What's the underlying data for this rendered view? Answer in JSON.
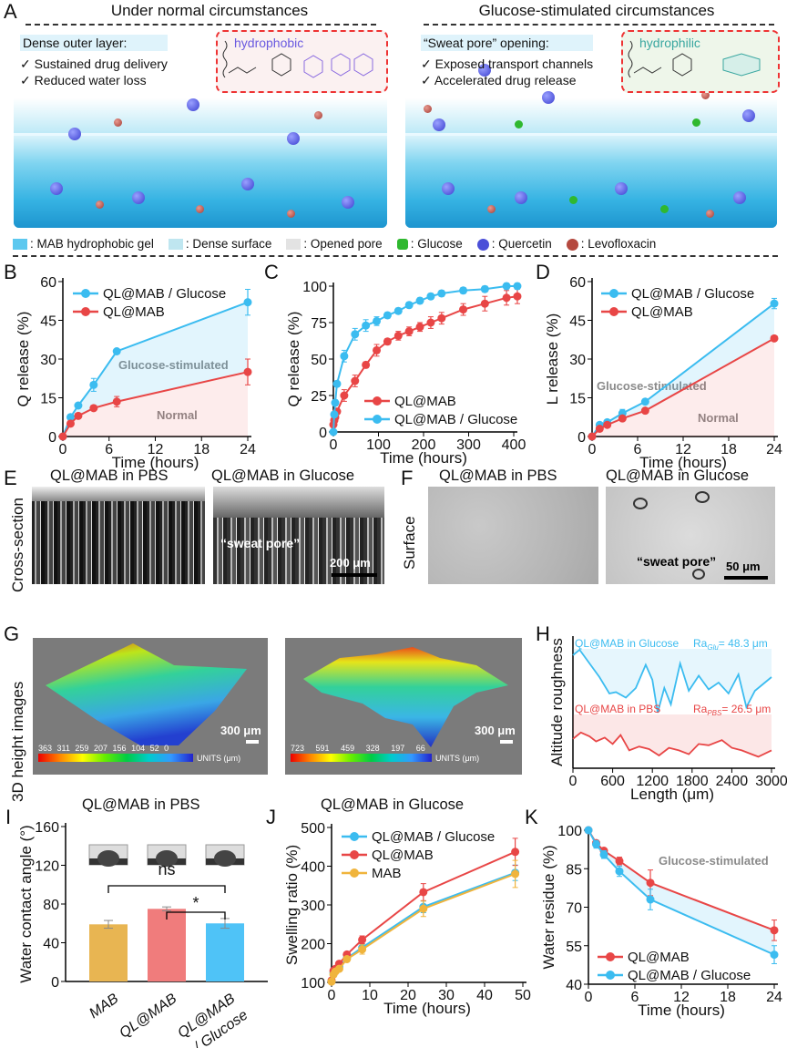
{
  "panel_letters": {
    "A": "A",
    "B": "B",
    "C": "C",
    "D": "D",
    "E": "E",
    "F": "F",
    "G": "G",
    "H": "H",
    "I": "I",
    "J": "J",
    "K": "K"
  },
  "panel_a": {
    "left_title": "Under normal circumstances",
    "right_title": "Glucose-stimulated circumstances",
    "left_note": {
      "heading": "Dense outer layer:",
      "items": [
        "✓ Sustained drug delivery",
        "✓ Reduced water loss"
      ]
    },
    "right_note": {
      "heading": "“Sweat pore” opening:",
      "items": [
        "✓ Exposed transport channels",
        "✓ Accelerated drug release"
      ]
    },
    "left_molecule_label": "hydrophobic",
    "right_molecule_label": "hydrophilic",
    "legend": [
      {
        "label": ": MAB hydrophobic gel",
        "color": "#5cc8ef"
      },
      {
        "label": ": Dense surface",
        "color": "#bfe6f0"
      },
      {
        "label": ": Opened pore",
        "color": "#d9d9d9"
      },
      {
        "label": ": Glucose",
        "color": "#2fb82f"
      },
      {
        "label": ": Quercetin",
        "color": "#4b4fd8"
      },
      {
        "label": ": Levofloxacin",
        "color": "#b5493f"
      }
    ]
  },
  "panel_e": {
    "left_title": "QL@MAB in PBS",
    "right_title": "QL@MAB in Glucose",
    "side_label": "Cross-section",
    "annotation": "“sweat pore”",
    "scale": "200 μm"
  },
  "panel_f": {
    "left_title": "QL@MAB in PBS",
    "right_title": "QL@MAB in Glucose",
    "side_label": "Surface",
    "annotation": "“sweat pore”",
    "scale": "50 μm"
  },
  "panel_g": {
    "side_label": "3D height images",
    "left_caption": "QL@MAB in PBS",
    "right_caption": "QL@MAB in Glucose",
    "scale": "300 μm",
    "units": "UNITS (μm)",
    "left_colorbar": [
      "363",
      "311",
      "259",
      "207",
      "156",
      "104",
      "52",
      "0"
    ],
    "right_colorbar": [
      "723",
      "591",
      "459",
      "328",
      "197",
      "66"
    ]
  },
  "colors": {
    "blue": "#3bbcf0",
    "red": "#e84646",
    "orange": "#f0b43c"
  },
  "chart_data": [
    {
      "id": "B",
      "type": "line",
      "xlabel": "Time (hours)",
      "ylabel": "Q release (%)",
      "xlim": [
        0,
        24
      ],
      "ylim": [
        0,
        60
      ],
      "xticks": [
        0,
        6,
        12,
        18,
        24
      ],
      "yticks": [
        0,
        15,
        30,
        45,
        60
      ],
      "legend": "top-left",
      "annotations": [
        "Glucose-stimulated",
        "Normal"
      ],
      "series": [
        {
          "name": "QL@MAB / Glucose",
          "color": "#3bbcf0",
          "x": [
            0,
            1,
            2,
            4,
            7,
            24
          ],
          "y": [
            0,
            7.5,
            12,
            20,
            33,
            52
          ],
          "err": [
            0,
            1,
            1,
            2.5,
            0.5,
            5
          ]
        },
        {
          "name": "QL@MAB",
          "color": "#e84646",
          "x": [
            0,
            1,
            2,
            4,
            7,
            24
          ],
          "y": [
            0,
            5,
            8,
            11,
            13.5,
            25
          ],
          "err": [
            0,
            1,
            1,
            1,
            2,
            5
          ]
        }
      ]
    },
    {
      "id": "C",
      "type": "line",
      "xlabel": "Time (hours)",
      "ylabel": "Q release (%)",
      "xlim": [
        0,
        400
      ],
      "ylim": [
        0,
        100
      ],
      "xticks": [
        0,
        100,
        200,
        300,
        400
      ],
      "yticks": [
        0,
        25,
        50,
        75,
        100
      ],
      "legend": "bottom-right",
      "annotations": [],
      "series": [
        {
          "name": "QL@MAB",
          "color": "#e84646",
          "x": [
            0,
            2,
            4,
            8,
            24,
            48,
            72,
            96,
            120,
            144,
            168,
            192,
            216,
            240,
            288,
            336,
            384,
            408
          ],
          "y": [
            5,
            8,
            10,
            14,
            25,
            35,
            46,
            56,
            62,
            66,
            69,
            72,
            75,
            78,
            84,
            88,
            92,
            93
          ],
          "err": [
            1,
            1,
            1,
            2,
            4,
            4,
            2,
            4,
            2,
            3,
            3,
            3,
            4,
            4,
            4,
            5,
            5,
            5
          ]
        },
        {
          "name": "QL@MAB / Glucose",
          "color": "#3bbcf0",
          "x": [
            0,
            2,
            4,
            8,
            24,
            48,
            72,
            96,
            120,
            144,
            168,
            192,
            216,
            240,
            288,
            336,
            384,
            408
          ],
          "y": [
            0,
            12,
            20,
            33,
            52,
            67,
            73,
            76,
            80,
            83,
            87,
            90,
            93,
            95,
            97,
            98,
            100,
            100
          ],
          "err": [
            1,
            1,
            2,
            2,
            4,
            4,
            4,
            3,
            2,
            2,
            2,
            2,
            2,
            2,
            2,
            2,
            2,
            2
          ]
        }
      ]
    },
    {
      "id": "D",
      "type": "line",
      "xlabel": "Time (hours)",
      "ylabel": "L release (%)",
      "xlim": [
        0,
        24
      ],
      "ylim": [
        0,
        60
      ],
      "xticks": [
        0,
        6,
        12,
        18,
        24
      ],
      "yticks": [
        0,
        15,
        30,
        45,
        60
      ],
      "legend": "top-left",
      "annotations": [
        "Glucose-stimulated",
        "Normal"
      ],
      "series": [
        {
          "name": "QL@MAB / Glucose",
          "color": "#3bbcf0",
          "x": [
            0,
            1,
            2,
            4,
            7,
            24
          ],
          "y": [
            0,
            4.5,
            5.5,
            9,
            13.5,
            51.5
          ],
          "err": [
            0,
            0.5,
            0.5,
            1.5,
            1,
            2
          ]
        },
        {
          "name": "QL@MAB",
          "color": "#e84646",
          "x": [
            0,
            1,
            2,
            4,
            7,
            24
          ],
          "y": [
            0,
            3,
            4.5,
            7,
            10,
            38
          ],
          "err": [
            0,
            0.5,
            0.5,
            0.5,
            0.5,
            1
          ]
        }
      ]
    },
    {
      "id": "H",
      "type": "line",
      "xlabel": "Length (μm)",
      "ylabel": "Altitude roughness",
      "xlim": [
        0,
        3000
      ],
      "xticks": [
        0,
        600,
        1200,
        1800,
        2400,
        3000
      ],
      "yticks": [],
      "legend": "inline",
      "series": [
        {
          "name": "QL@MAB in Glucose",
          "label": "Ra",
          "sub": "Glu",
          "value": "= 48.3 μm",
          "color": "#3bbcf0",
          "x": [
            0,
            100,
            250,
            400,
            550,
            650,
            800,
            950,
            1100,
            1200,
            1280,
            1380,
            1480,
            1620,
            1750,
            1900,
            2050,
            2200,
            2350,
            2500,
            2620,
            2750,
            3000
          ],
          "y": [
            0.8,
            1.0,
            0.5,
            0.0,
            -0.6,
            -0.55,
            -0.75,
            -0.4,
            0.45,
            -0.1,
            -1.3,
            -0.4,
            -1.0,
            0.5,
            -0.5,
            0.05,
            -0.45,
            -0.2,
            -0.6,
            0.1,
            -1.1,
            -0.5,
            0.0
          ]
        },
        {
          "name": "QL@MAB in PBS",
          "label": "Ra",
          "sub": "PBS",
          "value": "= 26.5 μm",
          "color": "#e84646",
          "x": [
            0,
            120,
            250,
            350,
            480,
            600,
            720,
            850,
            1000,
            1150,
            1300,
            1450,
            1600,
            1750,
            1900,
            2050,
            2250,
            2400,
            2550,
            2700,
            2800,
            3000
          ],
          "y": [
            0.3,
            0.8,
            0.5,
            0.1,
            0.4,
            -0.1,
            0.6,
            -0.6,
            -0.3,
            -0.5,
            -1.0,
            -0.4,
            -0.6,
            -0.9,
            -0.1,
            -0.2,
            0.2,
            -0.4,
            -0.6,
            -0.9,
            -1.1,
            -0.6
          ]
        }
      ]
    },
    {
      "id": "I",
      "type": "bar",
      "xlabel": "",
      "ylabel": "Water contact angle (°)",
      "ylim": [
        0,
        160
      ],
      "yticks": [
        0,
        40,
        80,
        120,
        160
      ],
      "categories": [
        "MAB",
        "QL@MAB",
        "QL@MAB / Glucose"
      ],
      "values": [
        59,
        75,
        60
      ],
      "err": [
        4,
        2,
        5
      ],
      "colors": [
        "#e8b552",
        "#f07c7c",
        "#4fc3f7"
      ],
      "significance": [
        {
          "between": [
            "MAB",
            "QL@MAB / Glucose"
          ],
          "label": "ns"
        },
        {
          "between": [
            "QL@MAB",
            "QL@MAB / Glucose"
          ],
          "label": "*"
        }
      ]
    },
    {
      "id": "J",
      "type": "line",
      "xlabel": "Time (hours)",
      "ylabel": "Swelling ratio (%)",
      "xlim": [
        0,
        50
      ],
      "ylim": [
        100,
        500
      ],
      "xticks": [
        0,
        10,
        20,
        30,
        40,
        50
      ],
      "yticks": [
        100,
        200,
        300,
        400,
        500
      ],
      "legend": "top-left",
      "annotations": [],
      "series": [
        {
          "name": "QL@MAB / Glucose",
          "color": "#3bbcf0",
          "x": [
            0,
            0.5,
            1,
            2,
            4,
            8,
            24,
            48
          ],
          "y": [
            103,
            125,
            130,
            140,
            162,
            190,
            295,
            383
          ],
          "err": [
            3,
            5,
            5,
            6,
            6,
            10,
            15,
            20
          ]
        },
        {
          "name": "QL@MAB",
          "color": "#e84646",
          "x": [
            0,
            0.5,
            1,
            2,
            4,
            8,
            24,
            48
          ],
          "y": [
            105,
            130,
            135,
            148,
            172,
            210,
            333,
            437
          ],
          "err": [
            3,
            5,
            5,
            6,
            6,
            10,
            22,
            35
          ]
        },
        {
          "name": "MAB",
          "color": "#f0b43c",
          "x": [
            0,
            0.5,
            1,
            2,
            4,
            8,
            24,
            48
          ],
          "y": [
            102,
            120,
            128,
            135,
            160,
            185,
            290,
            380
          ],
          "err": [
            3,
            5,
            5,
            6,
            6,
            12,
            20,
            35
          ]
        }
      ]
    },
    {
      "id": "K",
      "type": "line",
      "xlabel": "Time (hours)",
      "ylabel": "Water residue (%)",
      "xlim": [
        0,
        24
      ],
      "ylim": [
        40,
        100
      ],
      "xticks": [
        0,
        6,
        12,
        18,
        24
      ],
      "yticks": [
        40,
        55,
        70,
        85,
        100
      ],
      "legend": "bottom-left",
      "annotations": [
        "Glucose-stimulated"
      ],
      "series": [
        {
          "name": "QL@MAB",
          "color": "#e84646",
          "x": [
            0,
            1,
            2,
            4,
            8,
            24
          ],
          "y": [
            100,
            95,
            92,
            88,
            79.5,
            61
          ],
          "err": [
            0,
            1,
            1,
            1.5,
            5,
            4
          ]
        },
        {
          "name": "QL@MAB / Glucose",
          "color": "#3bbcf0",
          "x": [
            0,
            1,
            2,
            4,
            8,
            24
          ],
          "y": [
            100,
            94.5,
            90.5,
            84,
            73,
            51.5
          ],
          "err": [
            0,
            1.5,
            1.5,
            2,
            4,
            3.5
          ]
        }
      ]
    }
  ]
}
